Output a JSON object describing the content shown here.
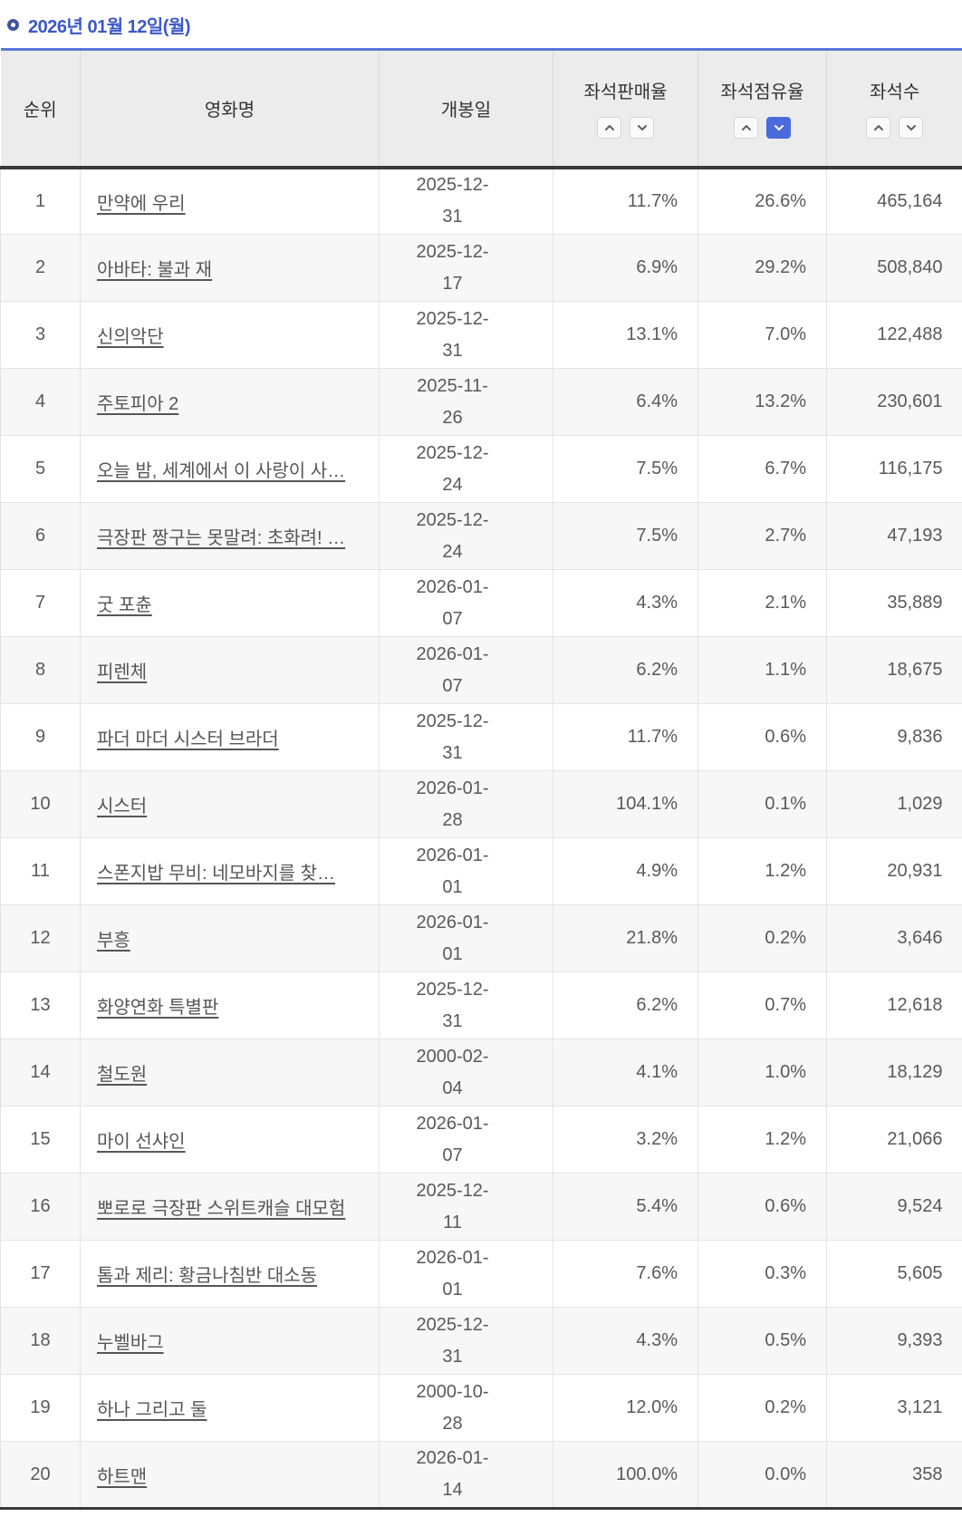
{
  "header": {
    "title": "2026년 01월 12일(월)"
  },
  "colors": {
    "title_blue": "#3b57cb",
    "bullet_ring_blue": "#42549e",
    "table_top_border_blue": "#5b76d8",
    "active_sort_blue": "#4a6bdc",
    "header_bg": "#ececec",
    "stripe_bg": "#f7f7f7",
    "cell_text": "#595959"
  },
  "table": {
    "columns": [
      {
        "key": "rank",
        "label": "순위",
        "sortable": false,
        "active_sort": null
      },
      {
        "key": "title",
        "label": "영화명",
        "sortable": false,
        "active_sort": null
      },
      {
        "key": "release_date",
        "label": "개봉일",
        "sortable": false,
        "active_sort": null
      },
      {
        "key": "seat_sales_rate",
        "label": "좌석판매율",
        "sortable": true,
        "active_sort": null
      },
      {
        "key": "seat_occupancy_rate",
        "label": "좌석점유율",
        "sortable": true,
        "active_sort": "desc"
      },
      {
        "key": "seat_count",
        "label": "좌석수",
        "sortable": true,
        "active_sort": null
      }
    ],
    "rows": [
      {
        "rank": "1",
        "title": "만약에 우리",
        "release_date": "2025-12-31",
        "seat_sales_rate": "11.7%",
        "seat_occupancy_rate": "26.6%",
        "seat_count": "465,164"
      },
      {
        "rank": "2",
        "title": "아바타: 불과 재",
        "release_date": "2025-12-17",
        "seat_sales_rate": "6.9%",
        "seat_occupancy_rate": "29.2%",
        "seat_count": "508,840"
      },
      {
        "rank": "3",
        "title": "신의악단",
        "release_date": "2025-12-31",
        "seat_sales_rate": "13.1%",
        "seat_occupancy_rate": "7.0%",
        "seat_count": "122,488"
      },
      {
        "rank": "4",
        "title": "주토피아 2",
        "release_date": "2025-11-26",
        "seat_sales_rate": "6.4%",
        "seat_occupancy_rate": "13.2%",
        "seat_count": "230,601"
      },
      {
        "rank": "5",
        "title": "오늘 밤, 세계에서 이 사랑이 사…",
        "release_date": "2025-12-24",
        "seat_sales_rate": "7.5%",
        "seat_occupancy_rate": "6.7%",
        "seat_count": "116,175"
      },
      {
        "rank": "6",
        "title": "극장판 짱구는 못말려: 초화려! …",
        "release_date": "2025-12-24",
        "seat_sales_rate": "7.5%",
        "seat_occupancy_rate": "2.7%",
        "seat_count": "47,193"
      },
      {
        "rank": "7",
        "title": "굿 포츈",
        "release_date": "2026-01-07",
        "seat_sales_rate": "4.3%",
        "seat_occupancy_rate": "2.1%",
        "seat_count": "35,889"
      },
      {
        "rank": "8",
        "title": "피렌체",
        "release_date": "2026-01-07",
        "seat_sales_rate": "6.2%",
        "seat_occupancy_rate": "1.1%",
        "seat_count": "18,675"
      },
      {
        "rank": "9",
        "title": "파더 마더 시스터 브라더",
        "release_date": "2025-12-31",
        "seat_sales_rate": "11.7%",
        "seat_occupancy_rate": "0.6%",
        "seat_count": "9,836"
      },
      {
        "rank": "10",
        "title": "시스터",
        "release_date": "2026-01-28",
        "seat_sales_rate": "104.1%",
        "seat_occupancy_rate": "0.1%",
        "seat_count": "1,029"
      },
      {
        "rank": "11",
        "title": "스폰지밥 무비: 네모바지를 찾…",
        "release_date": "2026-01-01",
        "seat_sales_rate": "4.9%",
        "seat_occupancy_rate": "1.2%",
        "seat_count": "20,931"
      },
      {
        "rank": "12",
        "title": "부흥",
        "release_date": "2026-01-01",
        "seat_sales_rate": "21.8%",
        "seat_occupancy_rate": "0.2%",
        "seat_count": "3,646"
      },
      {
        "rank": "13",
        "title": "화양연화 특별판",
        "release_date": "2025-12-31",
        "seat_sales_rate": "6.2%",
        "seat_occupancy_rate": "0.7%",
        "seat_count": "12,618"
      },
      {
        "rank": "14",
        "title": "철도원",
        "release_date": "2000-02-04",
        "seat_sales_rate": "4.1%",
        "seat_occupancy_rate": "1.0%",
        "seat_count": "18,129"
      },
      {
        "rank": "15",
        "title": "마이 선샤인",
        "release_date": "2026-01-07",
        "seat_sales_rate": "3.2%",
        "seat_occupancy_rate": "1.2%",
        "seat_count": "21,066"
      },
      {
        "rank": "16",
        "title": "뽀로로 극장판 스위트캐슬 대모험",
        "release_date": "2025-12-11",
        "seat_sales_rate": "5.4%",
        "seat_occupancy_rate": "0.6%",
        "seat_count": "9,524"
      },
      {
        "rank": "17",
        "title": "톰과 제리: 황금나침반 대소동",
        "release_date": "2026-01-01",
        "seat_sales_rate": "7.6%",
        "seat_occupancy_rate": "0.3%",
        "seat_count": "5,605"
      },
      {
        "rank": "18",
        "title": "누벨바그",
        "release_date": "2025-12-31",
        "seat_sales_rate": "4.3%",
        "seat_occupancy_rate": "0.5%",
        "seat_count": "9,393"
      },
      {
        "rank": "19",
        "title": "하나 그리고 둘",
        "release_date": "2000-10-28",
        "seat_sales_rate": "12.0%",
        "seat_occupancy_rate": "0.2%",
        "seat_count": "3,121"
      },
      {
        "rank": "20",
        "title": "하트맨",
        "release_date": "2026-01-14",
        "seat_sales_rate": "100.0%",
        "seat_occupancy_rate": "0.0%",
        "seat_count": "358"
      }
    ]
  }
}
